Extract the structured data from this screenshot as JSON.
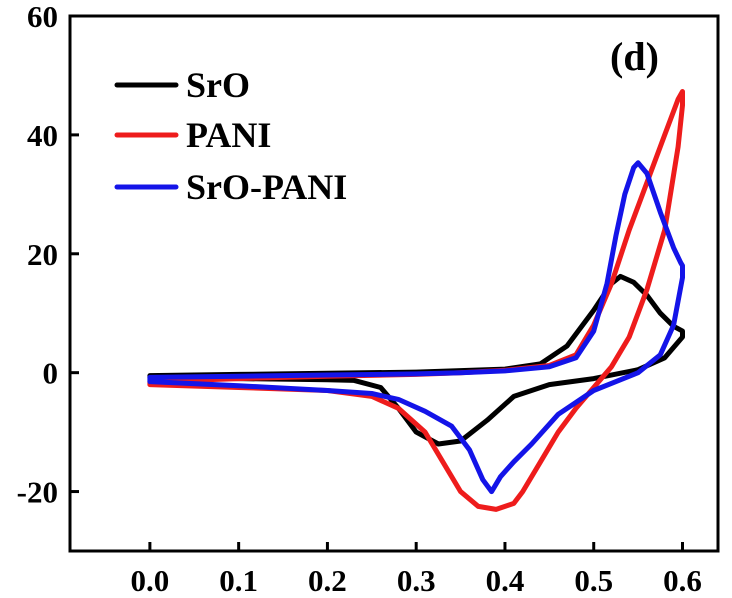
{
  "chart_data": {
    "type": "line",
    "panel_label": "(d)",
    "title": "",
    "xlabel": "",
    "ylabel": "",
    "xlim": [
      -0.09,
      0.64
    ],
    "ylim": [
      -30,
      60
    ],
    "x_ticks": [
      0.0,
      0.1,
      0.2,
      0.3,
      0.4,
      0.5,
      0.6
    ],
    "x_tick_labels": [
      "0.0",
      "0.1",
      "0.2",
      "0.3",
      "0.4",
      "0.5",
      "0.6"
    ],
    "y_ticks": [
      -20,
      0,
      20,
      40,
      60
    ],
    "y_tick_labels": [
      "-20",
      "0",
      "20",
      "40",
      "60"
    ],
    "grid": false,
    "legend": "top-left",
    "series": [
      {
        "name": "SrO",
        "color": "#000000",
        "points": [
          [
            0.0,
            -0.5
          ],
          [
            0.1,
            -0.3
          ],
          [
            0.2,
            -0.1
          ],
          [
            0.3,
            0.1
          ],
          [
            0.4,
            0.6
          ],
          [
            0.44,
            1.5
          ],
          [
            0.47,
            4.5
          ],
          [
            0.5,
            10.5
          ],
          [
            0.52,
            15.0
          ],
          [
            0.53,
            16.2
          ],
          [
            0.545,
            15.2
          ],
          [
            0.56,
            13.0
          ],
          [
            0.575,
            10.0
          ],
          [
            0.59,
            7.8
          ],
          [
            0.6,
            7.0
          ],
          [
            0.6,
            6.0
          ],
          [
            0.58,
            2.5
          ],
          [
            0.55,
            0.5
          ],
          [
            0.5,
            -1.0
          ],
          [
            0.45,
            -2.0
          ],
          [
            0.41,
            -4.0
          ],
          [
            0.38,
            -8.0
          ],
          [
            0.35,
            -11.5
          ],
          [
            0.325,
            -12.0
          ],
          [
            0.3,
            -10.0
          ],
          [
            0.28,
            -6.0
          ],
          [
            0.26,
            -2.5
          ],
          [
            0.23,
            -1.3
          ],
          [
            0.2,
            -1.2
          ],
          [
            0.1,
            -1.0
          ],
          [
            0.0,
            -0.8
          ],
          [
            0.0,
            -0.5
          ]
        ]
      },
      {
        "name": "PANI",
        "color": "#ee1c1c",
        "points": [
          [
            0.0,
            -1.5
          ],
          [
            0.1,
            -1.0
          ],
          [
            0.2,
            -0.6
          ],
          [
            0.3,
            -0.3
          ],
          [
            0.35,
            0.0
          ],
          [
            0.4,
            0.4
          ],
          [
            0.45,
            1.2
          ],
          [
            0.48,
            3.0
          ],
          [
            0.5,
            8.0
          ],
          [
            0.52,
            15.0
          ],
          [
            0.54,
            24.0
          ],
          [
            0.56,
            32.0
          ],
          [
            0.58,
            40.0
          ],
          [
            0.595,
            46.0
          ],
          [
            0.6,
            47.3
          ],
          [
            0.6,
            45.0
          ],
          [
            0.595,
            38.0
          ],
          [
            0.58,
            24.0
          ],
          [
            0.56,
            14.0
          ],
          [
            0.54,
            6.0
          ],
          [
            0.52,
            1.0
          ],
          [
            0.5,
            -2.5
          ],
          [
            0.48,
            -6.0
          ],
          [
            0.46,
            -10.0
          ],
          [
            0.44,
            -15.0
          ],
          [
            0.42,
            -20.0
          ],
          [
            0.41,
            -22.0
          ],
          [
            0.39,
            -23.0
          ],
          [
            0.37,
            -22.5
          ],
          [
            0.35,
            -20.0
          ],
          [
            0.33,
            -15.0
          ],
          [
            0.31,
            -10.0
          ],
          [
            0.28,
            -6.0
          ],
          [
            0.25,
            -4.0
          ],
          [
            0.2,
            -3.0
          ],
          [
            0.1,
            -2.5
          ],
          [
            0.0,
            -2.0
          ],
          [
            0.0,
            -1.5
          ]
        ]
      },
      {
        "name": "SrO-PANI",
        "color": "#1414e8",
        "points": [
          [
            0.0,
            -0.8
          ],
          [
            0.1,
            -0.6
          ],
          [
            0.2,
            -0.4
          ],
          [
            0.3,
            -0.2
          ],
          [
            0.35,
            0.0
          ],
          [
            0.4,
            0.3
          ],
          [
            0.45,
            1.0
          ],
          [
            0.48,
            2.5
          ],
          [
            0.5,
            7.0
          ],
          [
            0.515,
            15.0
          ],
          [
            0.525,
            23.0
          ],
          [
            0.535,
            30.0
          ],
          [
            0.545,
            34.5
          ],
          [
            0.55,
            35.3
          ],
          [
            0.56,
            33.5
          ],
          [
            0.575,
            27.0
          ],
          [
            0.59,
            21.0
          ],
          [
            0.598,
            18.5
          ],
          [
            0.6,
            18.0
          ],
          [
            0.6,
            16.0
          ],
          [
            0.59,
            8.0
          ],
          [
            0.575,
            3.0
          ],
          [
            0.55,
            0.0
          ],
          [
            0.5,
            -3.0
          ],
          [
            0.46,
            -7.0
          ],
          [
            0.43,
            -12.0
          ],
          [
            0.41,
            -15.0
          ],
          [
            0.395,
            -17.5
          ],
          [
            0.385,
            -20.0
          ],
          [
            0.375,
            -18.0
          ],
          [
            0.36,
            -13.0
          ],
          [
            0.34,
            -9.0
          ],
          [
            0.31,
            -6.5
          ],
          [
            0.28,
            -4.5
          ],
          [
            0.25,
            -3.5
          ],
          [
            0.2,
            -3.0
          ],
          [
            0.1,
            -2.2
          ],
          [
            0.0,
            -1.5
          ],
          [
            0.0,
            -0.8
          ]
        ]
      }
    ]
  }
}
